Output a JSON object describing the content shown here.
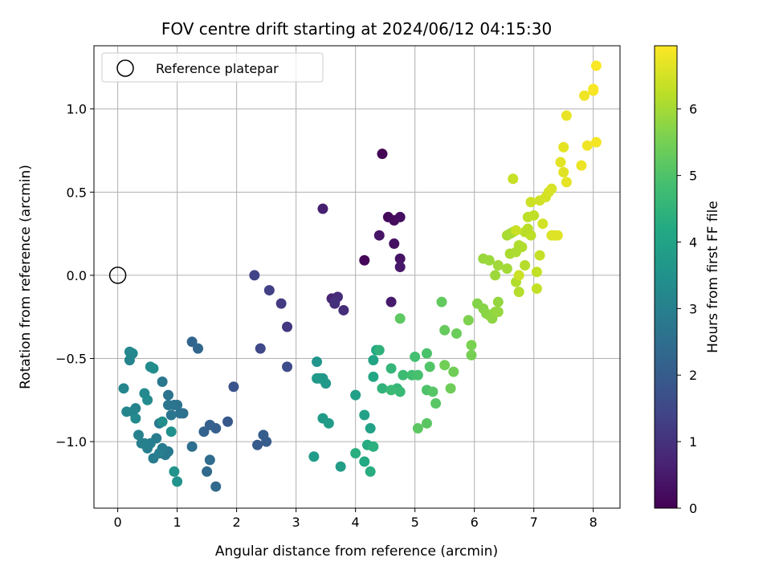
{
  "chart_data": {
    "type": "scatter",
    "title": "FOV centre drift starting at 2024/06/12 04:15:30",
    "xlabel": "Angular distance from reference (arcmin)",
    "ylabel": "Rotation from reference (arcmin)",
    "xlim": [
      -0.4,
      8.45
    ],
    "ylim": [
      -1.4,
      1.38
    ],
    "xticks": [
      0,
      1,
      2,
      3,
      4,
      5,
      6,
      7,
      8
    ],
    "xtick_labels": [
      "0",
      "1",
      "2",
      "3",
      "4",
      "5",
      "6",
      "7",
      "8"
    ],
    "yticks": [
      -1.0,
      -0.5,
      0.0,
      0.5,
      1.0
    ],
    "ytick_labels": [
      "−1.0",
      "−0.5",
      "0.0",
      "0.5",
      "1.0"
    ],
    "grid": true,
    "legend": {
      "entries": [
        "Reference platepar"
      ],
      "placement": "upper-left"
    },
    "reference_point": {
      "x": 0,
      "y": 0
    },
    "colorbar": {
      "label": "Hours from first FF file",
      "range": [
        0,
        6.95
      ],
      "ticks": [
        0,
        1,
        2,
        3,
        4,
        5,
        6
      ],
      "tick_labels": [
        "0",
        "1",
        "2",
        "3",
        "4",
        "5",
        "6"
      ],
      "colormap": "viridis"
    },
    "series": [
      {
        "x": [
          4.45,
          4.15,
          4.55,
          4.65,
          4.75,
          4.65,
          4.75,
          4.4,
          4.75,
          4.6
        ],
        "y": [
          0.73,
          0.09,
          0.35,
          0.33,
          0.35,
          0.19,
          0.1,
          0.24,
          0.05,
          -0.16
        ],
        "hours": [
          0.05,
          0.1,
          0.15,
          0.2,
          0.25,
          0.3,
          0.35,
          0.4,
          0.45,
          0.5
        ]
      },
      {
        "x": [
          3.45,
          3.6,
          3.65,
          3.7,
          3.8,
          3.65,
          2.85,
          2.75,
          2.55,
          2.3,
          2.4,
          2.85
        ],
        "y": [
          0.4,
          -0.14,
          -0.17,
          -0.13,
          -0.21,
          -0.16,
          -0.31,
          -0.17,
          -0.09,
          0.0,
          -0.44,
          -0.55
        ],
        "hours": [
          0.6,
          0.7,
          0.8,
          0.85,
          0.9,
          0.95,
          1.1,
          1.2,
          1.3,
          1.4,
          1.5,
          1.6
        ]
      },
      {
        "x": [
          1.95,
          1.85,
          2.35,
          2.5,
          2.45,
          1.65,
          1.55,
          1.45,
          1.25,
          1.35,
          1.5,
          1.65
        ],
        "y": [
          -0.67,
          -0.88,
          -1.02,
          -1.0,
          -0.96,
          -0.92,
          -0.9,
          -0.94,
          -0.4,
          -0.44,
          -1.18,
          -1.27
        ],
        "hours": [
          1.8,
          1.9,
          1.95,
          2.0,
          2.05,
          2.1,
          2.15,
          2.2,
          2.25,
          2.3,
          2.35,
          2.4
        ]
      },
      {
        "x": [
          1.55,
          1.25,
          1.1,
          1.05,
          1.0,
          0.85,
          0.95,
          0.9,
          0.85,
          0.75,
          0.7,
          0.8,
          0.85,
          0.75,
          0.65,
          0.6,
          0.7,
          0.55,
          0.5,
          0.45,
          0.4,
          0.35,
          0.3,
          0.25,
          0.2,
          0.15,
          0.1,
          0.25,
          0.2,
          0.3,
          0.45,
          0.5,
          0.55,
          0.6,
          0.75,
          0.9,
          1.0,
          0.95
        ],
        "y": [
          -1.11,
          -1.03,
          -0.83,
          -0.83,
          -0.78,
          -0.72,
          -0.78,
          -0.84,
          -0.78,
          -0.64,
          -0.89,
          -1.08,
          -1.06,
          -1.04,
          -0.98,
          -1.1,
          -1.07,
          -1.01,
          -1.04,
          -1.01,
          -1.01,
          -0.96,
          -0.8,
          -0.82,
          -0.51,
          -0.82,
          -0.68,
          -0.47,
          -0.46,
          -0.86,
          -0.71,
          -0.75,
          -0.55,
          -0.56,
          -0.88,
          -0.94,
          -1.24,
          -1.18
        ],
        "hours": [
          2.45,
          2.5,
          2.55,
          2.6,
          2.62,
          2.65,
          2.68,
          2.7,
          2.72,
          2.75,
          2.78,
          2.8,
          2.82,
          2.85,
          2.88,
          2.9,
          2.92,
          2.95,
          2.98,
          3.0,
          3.02,
          3.05,
          3.08,
          3.1,
          3.12,
          3.15,
          3.18,
          3.2,
          3.22,
          3.25,
          3.28,
          3.3,
          3.32,
          3.35,
          3.4,
          3.45,
          3.5,
          3.55
        ]
      },
      {
        "x": [
          3.35,
          3.4,
          3.45,
          3.5,
          3.35,
          3.45,
          3.55,
          3.3,
          3.75,
          4.0,
          4.15,
          4.25,
          4.3,
          4.35,
          4.3,
          4.15,
          4.2,
          4.25
        ],
        "y": [
          -0.52,
          -0.62,
          -0.62,
          -0.65,
          -0.62,
          -0.86,
          -0.89,
          -1.09,
          -1.15,
          -0.72,
          -0.84,
          -0.92,
          -0.51,
          -0.45,
          -0.61,
          -1.12,
          -1.02,
          -1.18
        ],
        "hours": [
          3.6,
          3.65,
          3.7,
          3.72,
          3.75,
          3.78,
          3.8,
          3.82,
          3.85,
          3.9,
          3.95,
          4.0,
          4.05,
          4.1,
          4.15,
          4.2,
          4.25,
          4.3
        ]
      },
      {
        "x": [
          4.0,
          4.3,
          4.4,
          4.45,
          4.6,
          4.7,
          4.75,
          4.6,
          4.8,
          4.95,
          5.0,
          5.05,
          5.2,
          5.2,
          5.25,
          5.3,
          5.35,
          5.2,
          5.05
        ],
        "y": [
          -1.07,
          -1.03,
          -0.45,
          -0.68,
          -0.56,
          -0.68,
          -0.7,
          -0.69,
          -0.6,
          -0.6,
          -0.49,
          -0.6,
          -0.47,
          -0.69,
          -0.55,
          -0.7,
          -0.77,
          -0.89,
          -0.92
        ],
        "hours": [
          4.35,
          4.4,
          4.45,
          4.5,
          4.55,
          4.6,
          4.65,
          4.7,
          4.75,
          4.8,
          4.85,
          4.9,
          4.95,
          5.0,
          5.05,
          5.1,
          5.12,
          5.15,
          5.18
        ]
      },
      {
        "x": [
          4.75,
          5.45,
          5.5,
          5.7,
          5.6,
          5.65,
          5.5,
          5.95,
          5.95,
          5.9,
          6.05,
          6.15,
          6.2,
          6.25,
          6.3,
          6.35,
          6.4,
          6.4
        ],
        "y": [
          -0.26,
          -0.16,
          -0.33,
          -0.35,
          -0.68,
          -0.58,
          -0.54,
          -0.48,
          -0.42,
          -0.27,
          -0.17,
          -0.2,
          -0.23,
          -0.24,
          -0.26,
          -0.22,
          -0.16,
          -0.22
        ],
        "hours": [
          5.2,
          5.25,
          5.3,
          5.35,
          5.4,
          5.42,
          5.45,
          5.5,
          5.55,
          5.6,
          5.65,
          5.7,
          5.72,
          5.75,
          5.78,
          5.8,
          5.82,
          5.85
        ]
      },
      {
        "x": [
          6.15,
          6.25,
          6.35,
          6.4,
          6.55,
          6.6,
          6.65,
          6.55,
          6.6,
          6.7,
          6.75,
          6.8,
          6.7,
          6.75,
          6.85,
          6.85,
          6.9,
          6.9,
          6.95,
          7.0,
          7.05,
          7.05,
          7.1,
          6.65,
          6.7,
          6.75
        ],
        "y": [
          0.1,
          0.09,
          0.0,
          0.06,
          0.04,
          0.25,
          0.26,
          0.24,
          0.13,
          0.14,
          0.18,
          0.17,
          -0.04,
          -0.1,
          0.06,
          0.26,
          0.28,
          0.35,
          0.24,
          0.36,
          0.02,
          -0.08,
          0.12,
          0.58,
          0.27,
          0.0
        ],
        "hours": [
          5.88,
          5.9,
          5.92,
          5.95,
          5.98,
          6.0,
          6.02,
          6.04,
          6.06,
          6.08,
          6.1,
          6.12,
          6.14,
          6.16,
          6.18,
          6.2,
          6.22,
          6.24,
          6.26,
          6.28,
          6.3,
          6.32,
          6.34,
          6.36,
          6.38,
          6.4
        ]
      },
      {
        "x": [
          6.95,
          7.1,
          7.15,
          7.2,
          7.25,
          7.3,
          7.3,
          7.35,
          7.4,
          7.5,
          7.45,
          7.5,
          7.55,
          7.55,
          7.8,
          7.85,
          7.9,
          8.0,
          8.05,
          8.0,
          8.05
        ],
        "y": [
          0.44,
          0.45,
          0.31,
          0.47,
          0.5,
          0.52,
          0.24,
          0.24,
          0.24,
          0.62,
          0.68,
          0.77,
          0.56,
          0.96,
          0.66,
          1.08,
          0.78,
          1.11,
          0.8,
          1.12,
          1.26
        ],
        "hours": [
          6.42,
          6.45,
          6.48,
          6.5,
          6.52,
          6.55,
          6.58,
          6.6,
          6.62,
          6.64,
          6.66,
          6.68,
          6.7,
          6.72,
          6.75,
          6.78,
          6.8,
          6.82,
          6.85,
          6.88,
          6.92
        ]
      }
    ]
  }
}
